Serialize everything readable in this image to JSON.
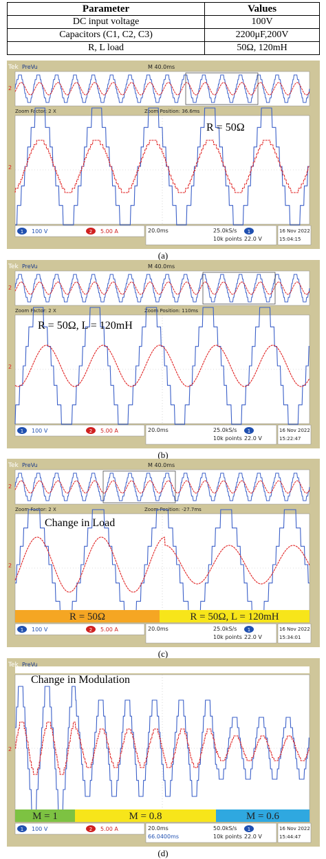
{
  "table": {
    "headers": [
      "Parameter",
      "Values"
    ],
    "rows": [
      [
        "DC input voltage",
        "100V"
      ],
      [
        "Capacitors (C1, C2, C3)",
        "2200μF,200V"
      ],
      [
        "R, L load",
        "50Ω, 120mH"
      ]
    ]
  },
  "panels": [
    {
      "id": "a",
      "caption": "(a)",
      "top": 88,
      "label": "R = 50Ω",
      "top_label": "M 40.0ms",
      "zoom_factor": "Zoom Factor: 2 X",
      "zoom_position": "Zoom Position: 36.6ms",
      "ch1": "100 V",
      "ch2": "5.00 A",
      "timebase": "20.0ms",
      "rate": "25.0kS/s",
      "points": "10k points",
      "level": "22.0 V",
      "date": "16 Nov 2022",
      "time": "15:04:15"
    },
    {
      "id": "b",
      "caption": "(b)",
      "top": 378,
      "label": "R = 50Ω, L = 120mH",
      "top_label": "M 40.0ms",
      "zoom_factor": "Zoom Factor: 2 X",
      "zoom_position": "Zoom Position: 110ms",
      "ch1": "100 V",
      "ch2": "5.00 A",
      "timebase": "20.0ms",
      "rate": "25.0kS/s",
      "points": "10k points",
      "level": "22.0 V",
      "date": "16 Nov 2022",
      "time": "15:22:47"
    },
    {
      "id": "c",
      "caption": "(c)",
      "top": 667,
      "label": "Change in Load",
      "top_label": "M 40.0ms",
      "zoom_factor": "Zoom Factor: 2 X",
      "zoom_position": "Zoom Position: -27.7ms",
      "ch1": "100 V",
      "ch2": "5.00 A",
      "timebase": "20.0ms",
      "rate": "25.0kS/s",
      "points": "10k points",
      "level": "22.0 V",
      "date": "16 Nov 2022",
      "time": "15:34:01",
      "bands": [
        {
          "text": "R = 50Ω",
          "color": "#f5a623"
        },
        {
          "text": "R = 50Ω, L = 120mH",
          "color": "#f7e51a"
        }
      ]
    },
    {
      "id": "d",
      "caption": "(d)",
      "top": 957,
      "label": "Change in Modulation",
      "ch1": "100 V",
      "ch2": "5.00 A",
      "timebase": "20.0ms",
      "rate": "50.0kS/s",
      "points": "10k points",
      "delay": "66.0400ms",
      "level": "22.0 V",
      "date": "16 Nov 2022",
      "time": "15:44:47",
      "bands": [
        {
          "text": "M = 1",
          "color": "#7dc242"
        },
        {
          "text": "M = 0.8",
          "color": "#f7e51a"
        },
        {
          "text": "M = 0.6",
          "color": "#2fa8e0"
        }
      ]
    }
  ],
  "colors": {
    "voltage": "#3a5fc8",
    "current": "#e02020",
    "screen": "#ffffff",
    "bezel": "#cfc69a"
  }
}
